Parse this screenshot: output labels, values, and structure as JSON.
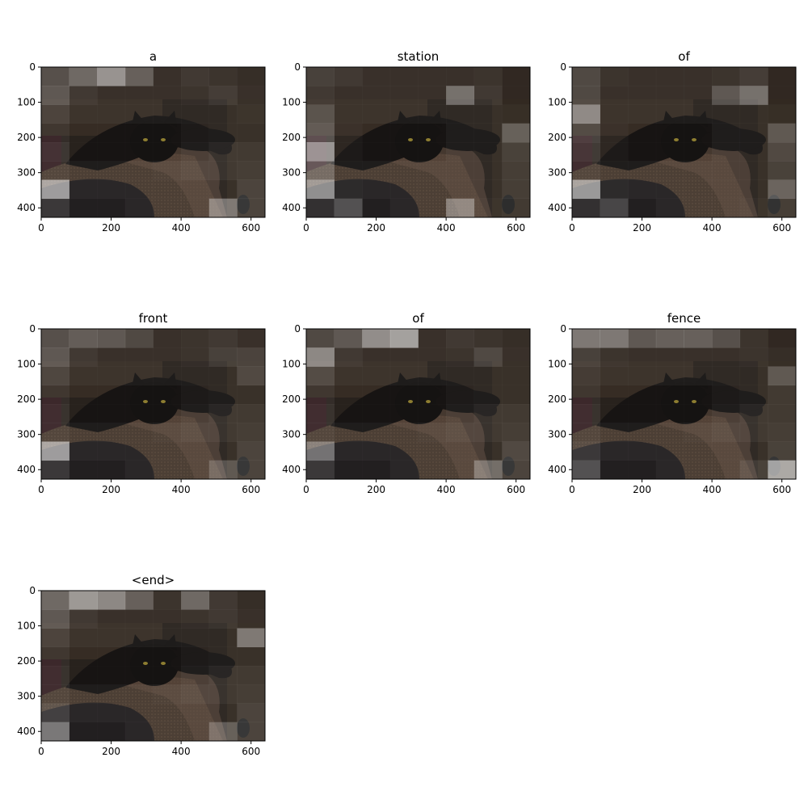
{
  "chart_data": [
    {
      "type": "heatmap",
      "title": "a",
      "xticks": [
        0,
        200,
        400,
        600
      ],
      "yticks": [
        0,
        100,
        200,
        300,
        400
      ],
      "xlim": [
        0,
        640
      ],
      "ylim": [
        427,
        0
      ],
      "grid_cols": 8,
      "grid_rows": 8,
      "attention": [
        [
          0.3,
          0.45,
          0.72,
          0.4,
          0.1,
          0.15,
          0.12,
          0.08
        ],
        [
          0.35,
          0.15,
          0.1,
          0.1,
          0.1,
          0.12,
          0.18,
          0.1
        ],
        [
          0.2,
          0.1,
          0.1,
          0.1,
          0.1,
          0.1,
          0.1,
          0.12
        ],
        [
          0.12,
          0.05,
          0.05,
          0.05,
          0.05,
          0.08,
          0.1,
          0.1
        ],
        [
          0.18,
          0.05,
          0.05,
          0.05,
          0.05,
          0.1,
          0.15,
          0.15
        ],
        [
          0.15,
          0.1,
          0.1,
          0.1,
          0.12,
          0.15,
          0.15,
          0.18
        ],
        [
          0.8,
          0.1,
          0.1,
          0.1,
          0.1,
          0.1,
          0.1,
          0.22
        ],
        [
          0.2,
          0.05,
          0.05,
          0.1,
          0.1,
          0.1,
          0.55,
          0.22
        ]
      ]
    },
    {
      "type": "heatmap",
      "title": "station",
      "xticks": [
        0,
        200,
        400,
        600
      ],
      "yticks": [
        0,
        100,
        200,
        300,
        400
      ],
      "xlim": [
        0,
        640
      ],
      "ylim": [
        427,
        0
      ],
      "grid_cols": 8,
      "grid_rows": 8,
      "attention": [
        [
          0.2,
          0.15,
          0.1,
          0.1,
          0.1,
          0.1,
          0.12,
          0.05
        ],
        [
          0.15,
          0.1,
          0.1,
          0.1,
          0.1,
          0.5,
          0.15,
          0.05
        ],
        [
          0.3,
          0.1,
          0.1,
          0.1,
          0.1,
          0.1,
          0.1,
          0.08
        ],
        [
          0.35,
          0.08,
          0.05,
          0.05,
          0.05,
          0.1,
          0.1,
          0.4
        ],
        [
          0.75,
          0.08,
          0.05,
          0.05,
          0.05,
          0.1,
          0.1,
          0.2
        ],
        [
          0.4,
          0.1,
          0.1,
          0.1,
          0.1,
          0.1,
          0.1,
          0.18
        ],
        [
          0.72,
          0.12,
          0.1,
          0.1,
          0.1,
          0.1,
          0.1,
          0.18
        ],
        [
          0.15,
          0.35,
          0.05,
          0.1,
          0.1,
          0.55,
          0.12,
          0.15
        ]
      ]
    },
    {
      "type": "heatmap",
      "title": "of",
      "xticks": [
        0,
        200,
        400,
        600
      ],
      "yticks": [
        0,
        100,
        200,
        300,
        400
      ],
      "xlim": [
        0,
        640
      ],
      "ylim": [
        427,
        0
      ],
      "grid_cols": 8,
      "grid_rows": 8,
      "attention": [
        [
          0.25,
          0.12,
          0.1,
          0.1,
          0.1,
          0.12,
          0.18,
          0.05
        ],
        [
          0.25,
          0.1,
          0.1,
          0.1,
          0.1,
          0.35,
          0.5,
          0.05
        ],
        [
          0.65,
          0.1,
          0.1,
          0.1,
          0.1,
          0.1,
          0.1,
          0.08
        ],
        [
          0.25,
          0.08,
          0.05,
          0.05,
          0.05,
          0.1,
          0.1,
          0.35
        ],
        [
          0.2,
          0.08,
          0.05,
          0.05,
          0.05,
          0.1,
          0.1,
          0.25
        ],
        [
          0.15,
          0.1,
          0.1,
          0.1,
          0.1,
          0.1,
          0.1,
          0.2
        ],
        [
          0.78,
          0.12,
          0.1,
          0.1,
          0.1,
          0.1,
          0.1,
          0.42
        ],
        [
          0.15,
          0.28,
          0.05,
          0.1,
          0.1,
          0.1,
          0.12,
          0.18
        ]
      ]
    },
    {
      "type": "heatmap",
      "title": "front",
      "xticks": [
        0,
        200,
        400,
        600
      ],
      "yticks": [
        0,
        100,
        200,
        300,
        400
      ],
      "xlim": [
        0,
        640
      ],
      "ylim": [
        427,
        0
      ],
      "grid_cols": 8,
      "grid_rows": 8,
      "attention": [
        [
          0.3,
          0.38,
          0.35,
          0.25,
          0.1,
          0.12,
          0.15,
          0.1
        ],
        [
          0.35,
          0.15,
          0.1,
          0.1,
          0.1,
          0.12,
          0.2,
          0.22
        ],
        [
          0.22,
          0.1,
          0.1,
          0.1,
          0.1,
          0.1,
          0.1,
          0.25
        ],
        [
          0.12,
          0.05,
          0.05,
          0.05,
          0.05,
          0.08,
          0.1,
          0.1
        ],
        [
          0.15,
          0.05,
          0.05,
          0.05,
          0.05,
          0.1,
          0.15,
          0.15
        ],
        [
          0.15,
          0.1,
          0.1,
          0.1,
          0.12,
          0.15,
          0.15,
          0.18
        ],
        [
          0.8,
          0.1,
          0.1,
          0.1,
          0.1,
          0.1,
          0.1,
          0.22
        ],
        [
          0.2,
          0.05,
          0.05,
          0.1,
          0.1,
          0.1,
          0.35,
          0.22
        ]
      ]
    },
    {
      "type": "heatmap",
      "title": "of",
      "xticks": [
        0,
        200,
        400,
        600
      ],
      "yticks": [
        0,
        100,
        200,
        300,
        400
      ],
      "xlim": [
        0,
        640
      ],
      "ylim": [
        427,
        0
      ],
      "grid_cols": 8,
      "grid_rows": 8,
      "attention": [
        [
          0.25,
          0.35,
          0.68,
          0.8,
          0.1,
          0.15,
          0.12,
          0.08
        ],
        [
          0.65,
          0.15,
          0.1,
          0.1,
          0.1,
          0.12,
          0.25,
          0.1
        ],
        [
          0.25,
          0.1,
          0.1,
          0.1,
          0.1,
          0.1,
          0.1,
          0.1
        ],
        [
          0.12,
          0.05,
          0.05,
          0.05,
          0.05,
          0.08,
          0.1,
          0.1
        ],
        [
          0.15,
          0.05,
          0.05,
          0.05,
          0.05,
          0.1,
          0.15,
          0.15
        ],
        [
          0.15,
          0.1,
          0.1,
          0.1,
          0.12,
          0.15,
          0.15,
          0.18
        ],
        [
          0.55,
          0.1,
          0.1,
          0.1,
          0.1,
          0.1,
          0.1,
          0.25
        ],
        [
          0.2,
          0.05,
          0.05,
          0.1,
          0.1,
          0.1,
          0.48,
          0.22
        ]
      ]
    },
    {
      "type": "heatmap",
      "title": "fence",
      "xticks": [
        0,
        200,
        400,
        600
      ],
      "yticks": [
        0,
        100,
        200,
        300,
        400
      ],
      "xlim": [
        0,
        640
      ],
      "ylim": [
        427,
        0
      ],
      "grid_cols": 8,
      "grid_rows": 8,
      "attention": [
        [
          0.55,
          0.55,
          0.35,
          0.4,
          0.4,
          0.3,
          0.12,
          0.05
        ],
        [
          0.2,
          0.12,
          0.1,
          0.1,
          0.1,
          0.1,
          0.12,
          0.08
        ],
        [
          0.15,
          0.1,
          0.1,
          0.1,
          0.1,
          0.1,
          0.1,
          0.35
        ],
        [
          0.12,
          0.05,
          0.05,
          0.05,
          0.05,
          0.08,
          0.1,
          0.15
        ],
        [
          0.15,
          0.05,
          0.05,
          0.05,
          0.05,
          0.1,
          0.15,
          0.15
        ],
        [
          0.15,
          0.1,
          0.1,
          0.1,
          0.12,
          0.15,
          0.15,
          0.18
        ],
        [
          0.2,
          0.1,
          0.1,
          0.1,
          0.1,
          0.1,
          0.1,
          0.2
        ],
        [
          0.35,
          0.05,
          0.05,
          0.1,
          0.1,
          0.1,
          0.2,
          0.85
        ]
      ]
    },
    {
      "type": "heatmap",
      "title": "<end>",
      "xticks": [
        0,
        200,
        400,
        600
      ],
      "yticks": [
        0,
        100,
        200,
        300,
        400
      ],
      "xlim": [
        0,
        640
      ],
      "ylim": [
        427,
        0
      ],
      "grid_cols": 8,
      "grid_rows": 8,
      "attention": [
        [
          0.45,
          0.75,
          0.65,
          0.4,
          0.12,
          0.45,
          0.15,
          0.08
        ],
        [
          0.35,
          0.15,
          0.1,
          0.1,
          0.1,
          0.12,
          0.15,
          0.1
        ],
        [
          0.2,
          0.1,
          0.1,
          0.1,
          0.1,
          0.1,
          0.1,
          0.55
        ],
        [
          0.12,
          0.05,
          0.05,
          0.05,
          0.05,
          0.08,
          0.1,
          0.1
        ],
        [
          0.15,
          0.05,
          0.05,
          0.05,
          0.05,
          0.1,
          0.15,
          0.15
        ],
        [
          0.15,
          0.1,
          0.1,
          0.1,
          0.12,
          0.15,
          0.15,
          0.18
        ],
        [
          0.25,
          0.1,
          0.1,
          0.1,
          0.1,
          0.1,
          0.1,
          0.22
        ],
        [
          0.58,
          0.05,
          0.05,
          0.1,
          0.1,
          0.1,
          0.4,
          0.22
        ]
      ]
    }
  ]
}
